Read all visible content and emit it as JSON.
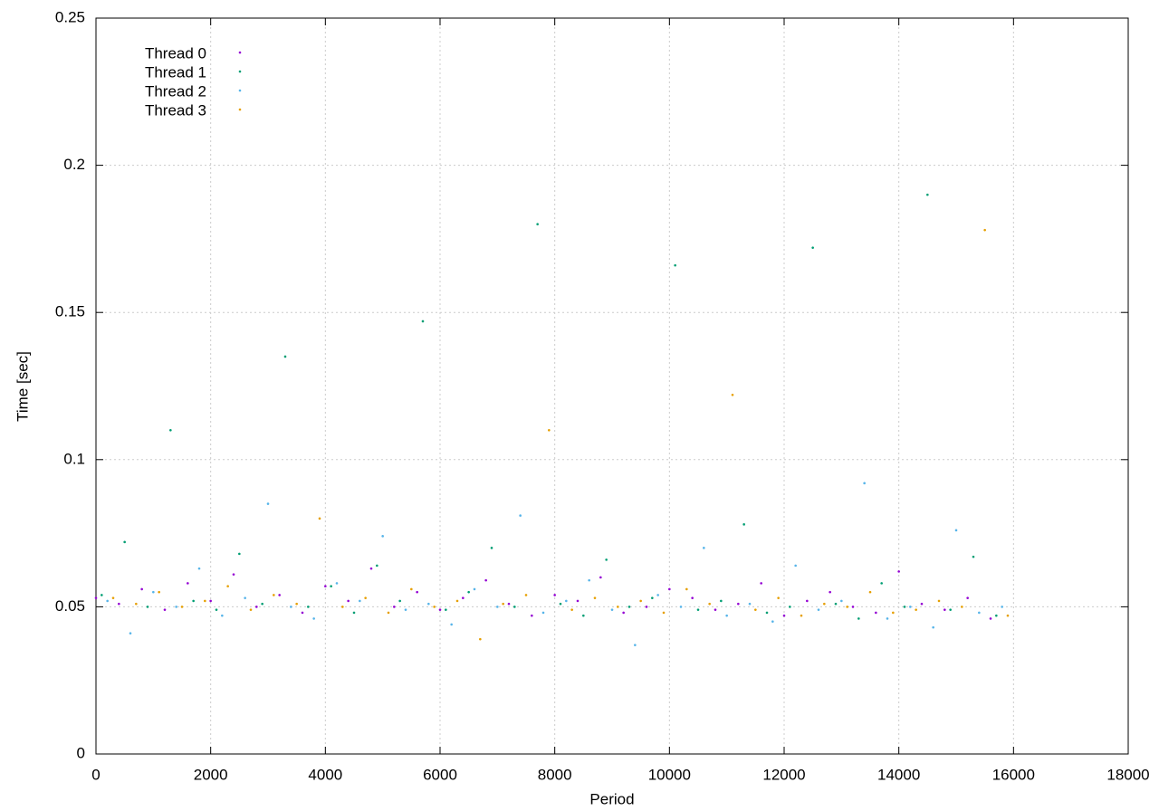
{
  "chart_data": {
    "type": "scatter",
    "x_label": "Period",
    "y_label": "Time [sec]",
    "xlim": [
      0,
      18000
    ],
    "xticks": [
      0,
      2000,
      4000,
      6000,
      8000,
      10000,
      12000,
      14000,
      16000,
      18000
    ],
    "ylim": [
      0,
      0.25
    ],
    "yticks": [
      0,
      0.05,
      0.1,
      0.15,
      0.2,
      0.25
    ],
    "grid": true,
    "legend_position": "top-left",
    "series": [
      {
        "name": "Thread 0",
        "color": "#9400d3",
        "x": [
          0,
          400,
          800,
          1200,
          1600,
          2000,
          2400,
          2800,
          3200,
          3600,
          4000,
          4400,
          4800,
          5200,
          5600,
          6000,
          6400,
          6800,
          7200,
          7600,
          8000,
          8400,
          8800,
          9200,
          9600,
          10000,
          10400,
          10800,
          11200,
          11600,
          12000,
          12400,
          12800,
          13200,
          13600,
          14000,
          14400,
          14800,
          15200,
          15600
        ],
        "values": [
          0.053,
          0.051,
          0.056,
          0.049,
          0.058,
          0.052,
          0.061,
          0.05,
          0.054,
          0.048,
          0.057,
          0.052,
          0.063,
          0.05,
          0.055,
          0.049,
          0.053,
          0.059,
          0.051,
          0.047,
          0.054,
          0.052,
          0.06,
          0.048,
          0.05,
          0.056,
          0.053,
          0.049,
          0.051,
          0.058,
          0.047,
          0.052,
          0.055,
          0.05,
          0.048,
          0.062,
          0.051,
          0.049,
          0.053,
          0.046
        ]
      },
      {
        "name": "Thread 1",
        "color": "#009e73",
        "x": [
          100,
          500,
          900,
          1300,
          1700,
          2100,
          2500,
          2900,
          3300,
          3700,
          4100,
          4500,
          4900,
          5300,
          5700,
          6100,
          6500,
          6900,
          7300,
          7700,
          8100,
          8500,
          8900,
          9300,
          9700,
          10100,
          10500,
          10900,
          11300,
          11700,
          12100,
          12500,
          12900,
          13300,
          13700,
          14100,
          14500,
          14900,
          15300,
          15700
        ],
        "values": [
          0.054,
          0.072,
          0.05,
          0.11,
          0.052,
          0.049,
          0.068,
          0.051,
          0.135,
          0.05,
          0.057,
          0.048,
          0.064,
          0.052,
          0.147,
          0.049,
          0.055,
          0.07,
          0.05,
          0.18,
          0.051,
          0.047,
          0.066,
          0.05,
          0.053,
          0.166,
          0.049,
          0.052,
          0.078,
          0.048,
          0.05,
          0.172,
          0.051,
          0.046,
          0.058,
          0.05,
          0.19,
          0.049,
          0.067,
          0.047
        ]
      },
      {
        "name": "Thread 2",
        "color": "#56b4e9",
        "x": [
          200,
          600,
          1000,
          1400,
          1800,
          2200,
          2600,
          3000,
          3400,
          3800,
          4200,
          4600,
          5000,
          5400,
          5800,
          6200,
          6600,
          7000,
          7400,
          7800,
          8200,
          8600,
          9000,
          9400,
          9800,
          10200,
          10600,
          11000,
          11400,
          11800,
          12200,
          12600,
          13000,
          13400,
          13800,
          14200,
          14600,
          15000,
          15400,
          15800
        ],
        "values": [
          0.052,
          0.041,
          0.055,
          0.05,
          0.063,
          0.047,
          0.053,
          0.085,
          0.05,
          0.046,
          0.058,
          0.052,
          0.074,
          0.049,
          0.051,
          0.044,
          0.056,
          0.05,
          0.081,
          0.048,
          0.052,
          0.059,
          0.049,
          0.037,
          0.054,
          0.05,
          0.07,
          0.047,
          0.051,
          0.045,
          0.064,
          0.049,
          0.052,
          0.092,
          0.046,
          0.05,
          0.043,
          0.076,
          0.048,
          0.05
        ]
      },
      {
        "name": "Thread 3",
        "color": "#e69f00",
        "x": [
          300,
          700,
          1100,
          1500,
          1900,
          2300,
          2700,
          3100,
          3500,
          3900,
          4300,
          4700,
          5100,
          5500,
          5900,
          6300,
          6700,
          7100,
          7500,
          7900,
          8300,
          8700,
          9100,
          9500,
          9900,
          10300,
          10700,
          11100,
          11500,
          11900,
          12300,
          12700,
          13100,
          13500,
          13900,
          14300,
          14700,
          15100,
          15500,
          15900
        ],
        "values": [
          0.053,
          0.051,
          0.055,
          0.05,
          0.052,
          0.057,
          0.049,
          0.054,
          0.051,
          0.08,
          0.05,
          0.053,
          0.048,
          0.056,
          0.05,
          0.052,
          0.039,
          0.051,
          0.054,
          0.11,
          0.049,
          0.053,
          0.05,
          0.052,
          0.048,
          0.056,
          0.051,
          0.122,
          0.049,
          0.053,
          0.047,
          0.051,
          0.05,
          0.055,
          0.048,
          0.049,
          0.052,
          0.05,
          0.178,
          0.047
        ]
      }
    ]
  }
}
